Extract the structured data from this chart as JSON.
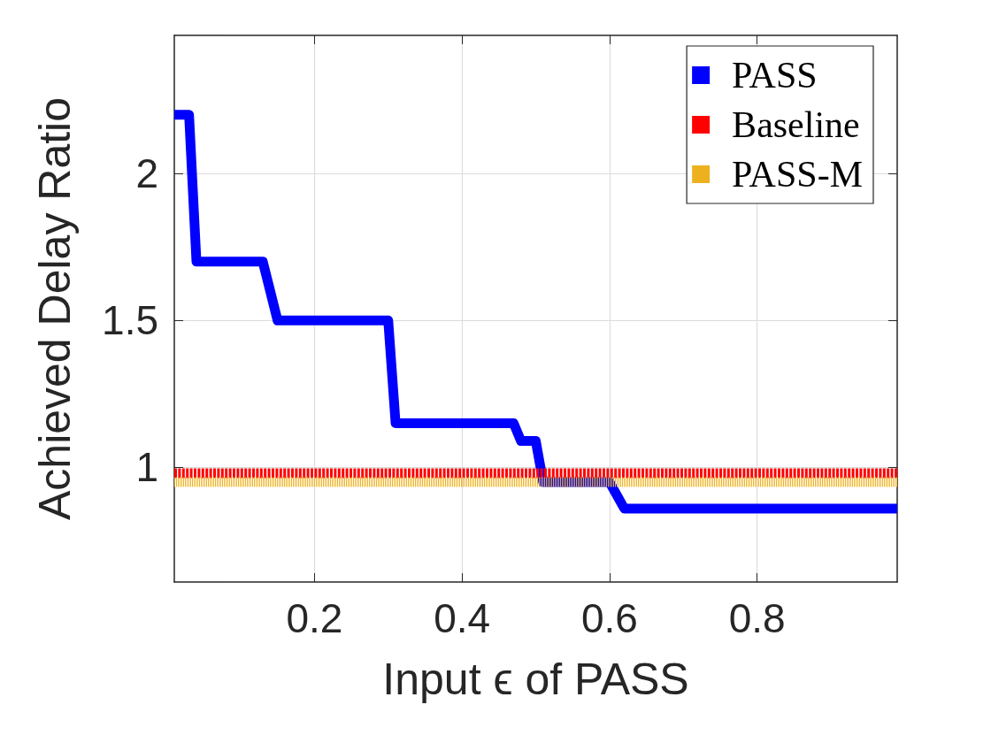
{
  "chart_data": {
    "type": "line",
    "xlabel": "Input ϵ of PASS",
    "ylabel": "Achieved Delay Ratio",
    "xlim": [
      0.01,
      0.99
    ],
    "xticks": [
      0.2,
      0.4,
      0.6,
      0.8
    ],
    "ylim": [
      0.61,
      2.47
    ],
    "yticks": [
      1,
      1.5,
      2
    ],
    "grid": true,
    "legend": "top right",
    "marker": "none",
    "series": [
      {
        "name": "PASS",
        "color": "#0000ff",
        "line_style": "solid",
        "x": [
          0.01,
          0.03,
          0.04,
          0.13,
          0.15,
          0.3,
          0.31,
          0.47,
          0.48,
          0.5,
          0.51,
          0.6,
          0.62,
          0.99
        ],
        "values": [
          2.2,
          2.2,
          1.7,
          1.7,
          1.5,
          1.5,
          1.15,
          1.15,
          1.09,
          1.09,
          0.95,
          0.95,
          0.86,
          0.86
        ]
      },
      {
        "name": "Baseline",
        "color": "#ff0000",
        "line_style": "dashed",
        "x": [
          0.01,
          0.99
        ],
        "values": [
          0.98,
          0.98
        ]
      },
      {
        "name": "PASS-M",
        "color": "#edb120",
        "line_style": "dotted",
        "x": [
          0.01,
          0.99
        ],
        "values": [
          0.95,
          0.95
        ]
      }
    ]
  }
}
